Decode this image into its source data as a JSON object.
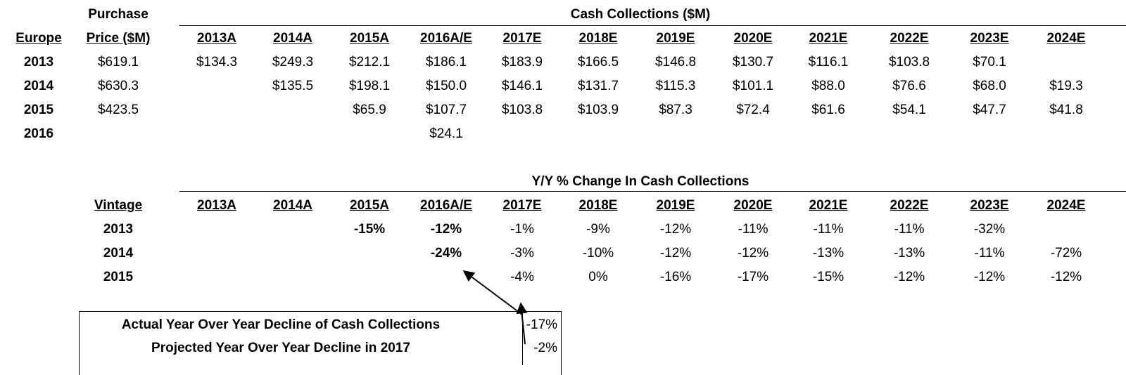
{
  "top": {
    "purchase_header_line1": "Purchase",
    "purchase_header_line2": "Price ($M)",
    "row_header": "Europe",
    "title": "Cash Collections ($M)",
    "years": [
      "2013A",
      "2014A",
      "2015A",
      "2016A/E",
      "2017E",
      "2018E",
      "2019E",
      "2020E",
      "2021E",
      "2022E",
      "2023E",
      "2024E"
    ],
    "rows": [
      {
        "label": "2013",
        "price": "$619.1",
        "cells": [
          "$134.3",
          "$249.3",
          "$212.1",
          "$186.1",
          "$183.9",
          "$166.5",
          "$146.8",
          "$130.7",
          "$116.1",
          "$103.8",
          "$70.1",
          ""
        ]
      },
      {
        "label": "2014",
        "price": "$630.3",
        "cells": [
          "",
          "$135.5",
          "$198.1",
          "$150.0",
          "$146.1",
          "$131.7",
          "$115.3",
          "$101.1",
          "$88.0",
          "$76.6",
          "$68.0",
          "$19.3"
        ]
      },
      {
        "label": "2015",
        "price": "$423.5",
        "cells": [
          "",
          "",
          "$65.9",
          "$107.7",
          "$103.8",
          "$103.9",
          "$87.3",
          "$72.4",
          "$61.6",
          "$54.1",
          "$47.7",
          "$41.8"
        ]
      },
      {
        "label": "2016",
        "price": "",
        "cells": [
          "",
          "",
          "",
          "$24.1",
          "",
          "",
          "",
          "",
          "",
          "",
          "",
          ""
        ]
      }
    ]
  },
  "bottom": {
    "title": "Y/Y % Change In Cash Collections",
    "row_header": "Vintage",
    "years": [
      "2013A",
      "2014A",
      "2015A",
      "2016A/E",
      "2017E",
      "2018E",
      "2019E",
      "2020E",
      "2021E",
      "2022E",
      "2023E",
      "2024E"
    ],
    "rows": [
      {
        "label": "2013",
        "cells": [
          "",
          "",
          "-15%",
          "-12%",
          "-1%",
          "-9%",
          "-12%",
          "-11%",
          "-11%",
          "-11%",
          "-32%",
          ""
        ]
      },
      {
        "label": "2014",
        "cells": [
          "",
          "",
          "",
          "-24%",
          "-3%",
          "-10%",
          "-12%",
          "-12%",
          "-13%",
          "-13%",
          "-11%",
          "-72%"
        ]
      },
      {
        "label": "2015",
        "cells": [
          "",
          "",
          "",
          "",
          "-4%",
          "0%",
          "-16%",
          "-17%",
          "-15%",
          "-12%",
          "-12%",
          "-12%"
        ]
      }
    ]
  },
  "summary": {
    "actual_label": "Actual Year Over Year Decline of Cash Collections",
    "actual_value": "-17%",
    "projected_label": "Projected Year Over Year Decline in 2017",
    "projected_value": "-2%"
  }
}
